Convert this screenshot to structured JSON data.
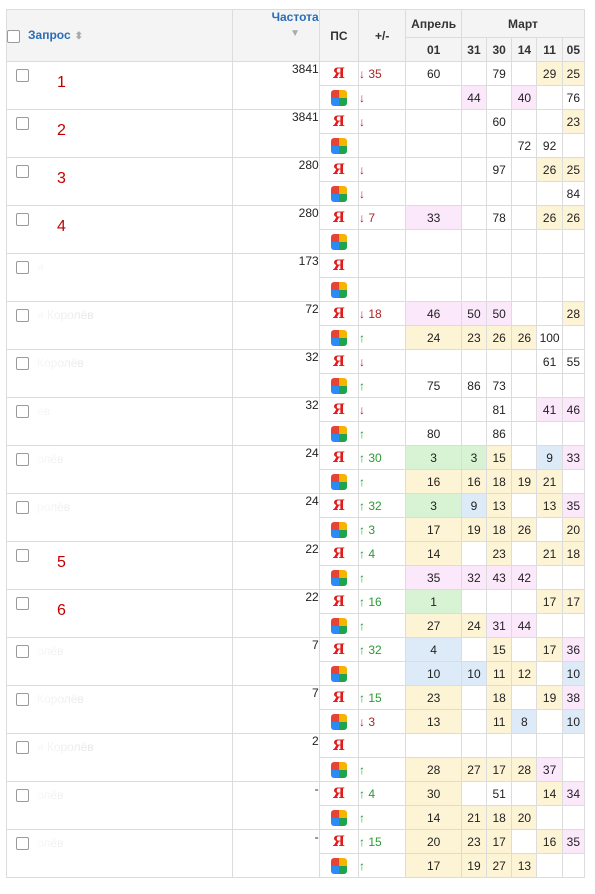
{
  "header": {
    "query": "Запрос",
    "frequency": "Частота",
    "ps": "ПС",
    "delta": "+/-",
    "month_april": "Апрель",
    "month_march": "Март",
    "days": [
      "01",
      "31",
      "30",
      "14",
      "11",
      "05"
    ]
  },
  "colors": {
    "yellow": "#fdf4d6",
    "pink": "#fbe8fb",
    "green": "#d8f3d3",
    "blue": "#ddeaf8",
    "link": "#2a6db5",
    "down_arrow": "#b02323",
    "up_arrow": "#2b9a35",
    "label_number": "#c00000"
  },
  "engines": {
    "yandex": "Я",
    "google": "google-icon"
  },
  "groups": [
    {
      "label_number": "1",
      "query_text": "",
      "frequency": "3841",
      "rows": [
        {
          "delta": "↓ 35",
          "dir": "down",
          "positions": [
            {
              "v": "60"
            },
            {
              "v": ""
            },
            {
              "v": "79"
            },
            {
              "v": ""
            },
            {
              "v": "29",
              "c": "y"
            },
            {
              "v": "25",
              "c": "y"
            }
          ]
        },
        {
          "delta": "↓",
          "dir": "down",
          "positions": [
            {
              "v": ""
            },
            {
              "v": "44",
              "c": "p"
            },
            {
              "v": ""
            },
            {
              "v": "40",
              "c": "p"
            },
            {
              "v": ""
            },
            {
              "v": "76"
            }
          ]
        }
      ]
    },
    {
      "label_number": "2",
      "query_text": "",
      "frequency": "3841",
      "rows": [
        {
          "delta": "↓",
          "dir": "down",
          "positions": [
            {
              "v": ""
            },
            {
              "v": ""
            },
            {
              "v": "60"
            },
            {
              "v": ""
            },
            {
              "v": ""
            },
            {
              "v": "23",
              "c": "y"
            }
          ]
        },
        {
          "delta": "",
          "dir": "",
          "positions": [
            {
              "v": ""
            },
            {
              "v": ""
            },
            {
              "v": ""
            },
            {
              "v": "72"
            },
            {
              "v": "92"
            },
            {
              "v": ""
            }
          ]
        }
      ]
    },
    {
      "label_number": "3",
      "query_text": "",
      "frequency": "280",
      "rows": [
        {
          "delta": "↓",
          "dir": "down",
          "positions": [
            {
              "v": ""
            },
            {
              "v": ""
            },
            {
              "v": "97"
            },
            {
              "v": ""
            },
            {
              "v": "26",
              "c": "y"
            },
            {
              "v": "25",
              "c": "y"
            }
          ]
        },
        {
          "delta": "↓",
          "dir": "down",
          "positions": [
            {
              "v": ""
            },
            {
              "v": ""
            },
            {
              "v": ""
            },
            {
              "v": ""
            },
            {
              "v": ""
            },
            {
              "v": "84"
            }
          ]
        }
      ]
    },
    {
      "label_number": "4",
      "query_text": "",
      "frequency": "280",
      "rows": [
        {
          "delta": "↓ 7",
          "dir": "down",
          "positions": [
            {
              "v": "33",
              "c": "p"
            },
            {
              "v": ""
            },
            {
              "v": "78"
            },
            {
              "v": ""
            },
            {
              "v": "26",
              "c": "y"
            },
            {
              "v": "26",
              "c": "y"
            }
          ]
        },
        {
          "delta": "",
          "dir": "",
          "positions": [
            {
              "v": ""
            },
            {
              "v": ""
            },
            {
              "v": ""
            },
            {
              "v": ""
            },
            {
              "v": ""
            },
            {
              "v": ""
            }
          ]
        }
      ]
    },
    {
      "label_number": "",
      "query_text": "я",
      "frequency": "173",
      "rows": [
        {
          "delta": "",
          "dir": "",
          "positions": [
            {
              "v": ""
            },
            {
              "v": ""
            },
            {
              "v": ""
            },
            {
              "v": ""
            },
            {
              "v": ""
            },
            {
              "v": ""
            }
          ]
        },
        {
          "delta": "",
          "dir": "",
          "positions": [
            {
              "v": ""
            },
            {
              "v": ""
            },
            {
              "v": ""
            },
            {
              "v": ""
            },
            {
              "v": ""
            },
            {
              "v": ""
            }
          ]
        }
      ]
    },
    {
      "label_number": "",
      "query_text": "я Королёв",
      "frequency": "72",
      "rows": [
        {
          "delta": "↓ 18",
          "dir": "down",
          "positions": [
            {
              "v": "46",
              "c": "p"
            },
            {
              "v": "50",
              "c": "p"
            },
            {
              "v": "50",
              "c": "p"
            },
            {
              "v": ""
            },
            {
              "v": ""
            },
            {
              "v": "28",
              "c": "y"
            }
          ]
        },
        {
          "delta": "↑",
          "dir": "up",
          "positions": [
            {
              "v": "24",
              "c": "y"
            },
            {
              "v": "23",
              "c": "y"
            },
            {
              "v": "26",
              "c": "y"
            },
            {
              "v": "26",
              "c": "y"
            },
            {
              "v": "100"
            },
            {
              "v": ""
            }
          ]
        }
      ]
    },
    {
      "label_number": "",
      "query_text": "Королёв",
      "frequency": "32",
      "rows": [
        {
          "delta": "↓",
          "dir": "down",
          "positions": [
            {
              "v": ""
            },
            {
              "v": ""
            },
            {
              "v": ""
            },
            {
              "v": ""
            },
            {
              "v": "61"
            },
            {
              "v": "55"
            }
          ]
        },
        {
          "delta": "↑",
          "dir": "up",
          "positions": [
            {
              "v": "75"
            },
            {
              "v": "86"
            },
            {
              "v": "73"
            },
            {
              "v": ""
            },
            {
              "v": ""
            },
            {
              "v": ""
            }
          ]
        }
      ]
    },
    {
      "label_number": "",
      "query_text": "ёв",
      "frequency": "32",
      "rows": [
        {
          "delta": "↓",
          "dir": "down",
          "positions": [
            {
              "v": ""
            },
            {
              "v": ""
            },
            {
              "v": "81"
            },
            {
              "v": ""
            },
            {
              "v": "41",
              "c": "p"
            },
            {
              "v": "46",
              "c": "p"
            }
          ]
        },
        {
          "delta": "↑",
          "dir": "up",
          "positions": [
            {
              "v": "80"
            },
            {
              "v": ""
            },
            {
              "v": "86"
            },
            {
              "v": ""
            },
            {
              "v": ""
            },
            {
              "v": ""
            }
          ]
        }
      ]
    },
    {
      "label_number": "",
      "query_text": "олёв",
      "frequency": "24",
      "rows": [
        {
          "delta": "↑ 30",
          "dir": "up",
          "positions": [
            {
              "v": "3",
              "c": "g"
            },
            {
              "v": "3",
              "c": "g"
            },
            {
              "v": "15",
              "c": "y"
            },
            {
              "v": ""
            },
            {
              "v": "9",
              "c": "b"
            },
            {
              "v": "33",
              "c": "p"
            }
          ]
        },
        {
          "delta": "↑",
          "dir": "up",
          "positions": [
            {
              "v": "16",
              "c": "y"
            },
            {
              "v": "16",
              "c": "y"
            },
            {
              "v": "18",
              "c": "y"
            },
            {
              "v": "19",
              "c": "y"
            },
            {
              "v": "21",
              "c": "y"
            },
            {
              "v": ""
            }
          ]
        }
      ]
    },
    {
      "label_number": "",
      "query_text": "ролёв",
      "frequency": "24",
      "rows": [
        {
          "delta": "↑ 32",
          "dir": "up",
          "positions": [
            {
              "v": "3",
              "c": "g"
            },
            {
              "v": "9",
              "c": "b"
            },
            {
              "v": "13",
              "c": "y"
            },
            {
              "v": ""
            },
            {
              "v": "13",
              "c": "y"
            },
            {
              "v": "35",
              "c": "p"
            }
          ]
        },
        {
          "delta": "↑ 3",
          "dir": "up",
          "positions": [
            {
              "v": "17",
              "c": "y"
            },
            {
              "v": "19",
              "c": "y"
            },
            {
              "v": "18",
              "c": "y"
            },
            {
              "v": "26",
              "c": "y"
            },
            {
              "v": ""
            },
            {
              "v": "20",
              "c": "y"
            }
          ]
        }
      ]
    },
    {
      "label_number": "5",
      "query_text": "",
      "frequency": "22",
      "rows": [
        {
          "delta": "↑ 4",
          "dir": "up",
          "positions": [
            {
              "v": "14",
              "c": "y"
            },
            {
              "v": ""
            },
            {
              "v": "23",
              "c": "y"
            },
            {
              "v": ""
            },
            {
              "v": "21",
              "c": "y"
            },
            {
              "v": "18",
              "c": "y"
            }
          ]
        },
        {
          "delta": "↑",
          "dir": "up",
          "positions": [
            {
              "v": "35",
              "c": "p"
            },
            {
              "v": "32",
              "c": "p"
            },
            {
              "v": "43",
              "c": "p"
            },
            {
              "v": "42",
              "c": "p"
            },
            {
              "v": ""
            },
            {
              "v": ""
            }
          ]
        }
      ]
    },
    {
      "label_number": "6",
      "query_text": "",
      "frequency": "22",
      "rows": [
        {
          "delta": "↑ 16",
          "dir": "up",
          "positions": [
            {
              "v": "1",
              "c": "g"
            },
            {
              "v": ""
            },
            {
              "v": ""
            },
            {
              "v": ""
            },
            {
              "v": "17",
              "c": "y"
            },
            {
              "v": "17",
              "c": "y"
            }
          ]
        },
        {
          "delta": "↑",
          "dir": "up",
          "positions": [
            {
              "v": "27",
              "c": "y"
            },
            {
              "v": "24",
              "c": "y"
            },
            {
              "v": "31",
              "c": "p"
            },
            {
              "v": "44",
              "c": "p"
            },
            {
              "v": ""
            },
            {
              "v": ""
            }
          ]
        }
      ]
    },
    {
      "label_number": "",
      "query_text": "олёв",
      "frequency": "7",
      "rows": [
        {
          "delta": "↑ 32",
          "dir": "up",
          "positions": [
            {
              "v": "4",
              "c": "b"
            },
            {
              "v": ""
            },
            {
              "v": "15",
              "c": "y"
            },
            {
              "v": ""
            },
            {
              "v": "17",
              "c": "y"
            },
            {
              "v": "36",
              "c": "p"
            }
          ]
        },
        {
          "delta": "",
          "dir": "",
          "positions": [
            {
              "v": "10",
              "c": "b"
            },
            {
              "v": "10",
              "c": "b"
            },
            {
              "v": "11",
              "c": "y"
            },
            {
              "v": "12",
              "c": "y"
            },
            {
              "v": ""
            },
            {
              "v": "10",
              "c": "b"
            }
          ]
        }
      ]
    },
    {
      "label_number": "",
      "query_text": "Королёв",
      "frequency": "7",
      "rows": [
        {
          "delta": "↑ 15",
          "dir": "up",
          "positions": [
            {
              "v": "23",
              "c": "y"
            },
            {
              "v": ""
            },
            {
              "v": "18",
              "c": "y"
            },
            {
              "v": ""
            },
            {
              "v": "19",
              "c": "y"
            },
            {
              "v": "38",
              "c": "p"
            }
          ]
        },
        {
          "delta": "↓ 3",
          "dir": "down",
          "positions": [
            {
              "v": "13",
              "c": "y"
            },
            {
              "v": ""
            },
            {
              "v": "11",
              "c": "y"
            },
            {
              "v": "8",
              "c": "b"
            },
            {
              "v": ""
            },
            {
              "v": "10",
              "c": "b"
            }
          ]
        }
      ]
    },
    {
      "label_number": "",
      "query_text": "я Королёв",
      "frequency": "2",
      "rows": [
        {
          "delta": "",
          "dir": "",
          "positions": [
            {
              "v": ""
            },
            {
              "v": ""
            },
            {
              "v": ""
            },
            {
              "v": ""
            },
            {
              "v": ""
            },
            {
              "v": ""
            }
          ]
        },
        {
          "delta": "↑",
          "dir": "up",
          "positions": [
            {
              "v": "28",
              "c": "y"
            },
            {
              "v": "27",
              "c": "y"
            },
            {
              "v": "17",
              "c": "y"
            },
            {
              "v": "28",
              "c": "y"
            },
            {
              "v": "37",
              "c": "p"
            },
            {
              "v": ""
            }
          ]
        }
      ]
    },
    {
      "label_number": "",
      "query_text": "олёв",
      "frequency": "-",
      "rows": [
        {
          "delta": "↑ 4",
          "dir": "up",
          "positions": [
            {
              "v": "30",
              "c": "y"
            },
            {
              "v": ""
            },
            {
              "v": "51"
            },
            {
              "v": ""
            },
            {
              "v": "14",
              "c": "y"
            },
            {
              "v": "34",
              "c": "p"
            }
          ]
        },
        {
          "delta": "↑",
          "dir": "up",
          "positions": [
            {
              "v": "14",
              "c": "y"
            },
            {
              "v": "21",
              "c": "y"
            },
            {
              "v": "18",
              "c": "y"
            },
            {
              "v": "20",
              "c": "y"
            },
            {
              "v": ""
            },
            {
              "v": ""
            }
          ]
        }
      ]
    },
    {
      "label_number": "",
      "query_text": "олёв",
      "frequency": "-",
      "rows": [
        {
          "delta": "↑ 15",
          "dir": "up",
          "positions": [
            {
              "v": "20",
              "c": "y"
            },
            {
              "v": "23",
              "c": "y"
            },
            {
              "v": "17",
              "c": "y"
            },
            {
              "v": ""
            },
            {
              "v": "16",
              "c": "y"
            },
            {
              "v": "35",
              "c": "p"
            }
          ]
        },
        {
          "delta": "↑",
          "dir": "up",
          "positions": [
            {
              "v": "17",
              "c": "y"
            },
            {
              "v": "19",
              "c": "y"
            },
            {
              "v": "27",
              "c": "y"
            },
            {
              "v": "13",
              "c": "y"
            },
            {
              "v": ""
            },
            {
              "v": ""
            }
          ]
        }
      ]
    }
  ]
}
